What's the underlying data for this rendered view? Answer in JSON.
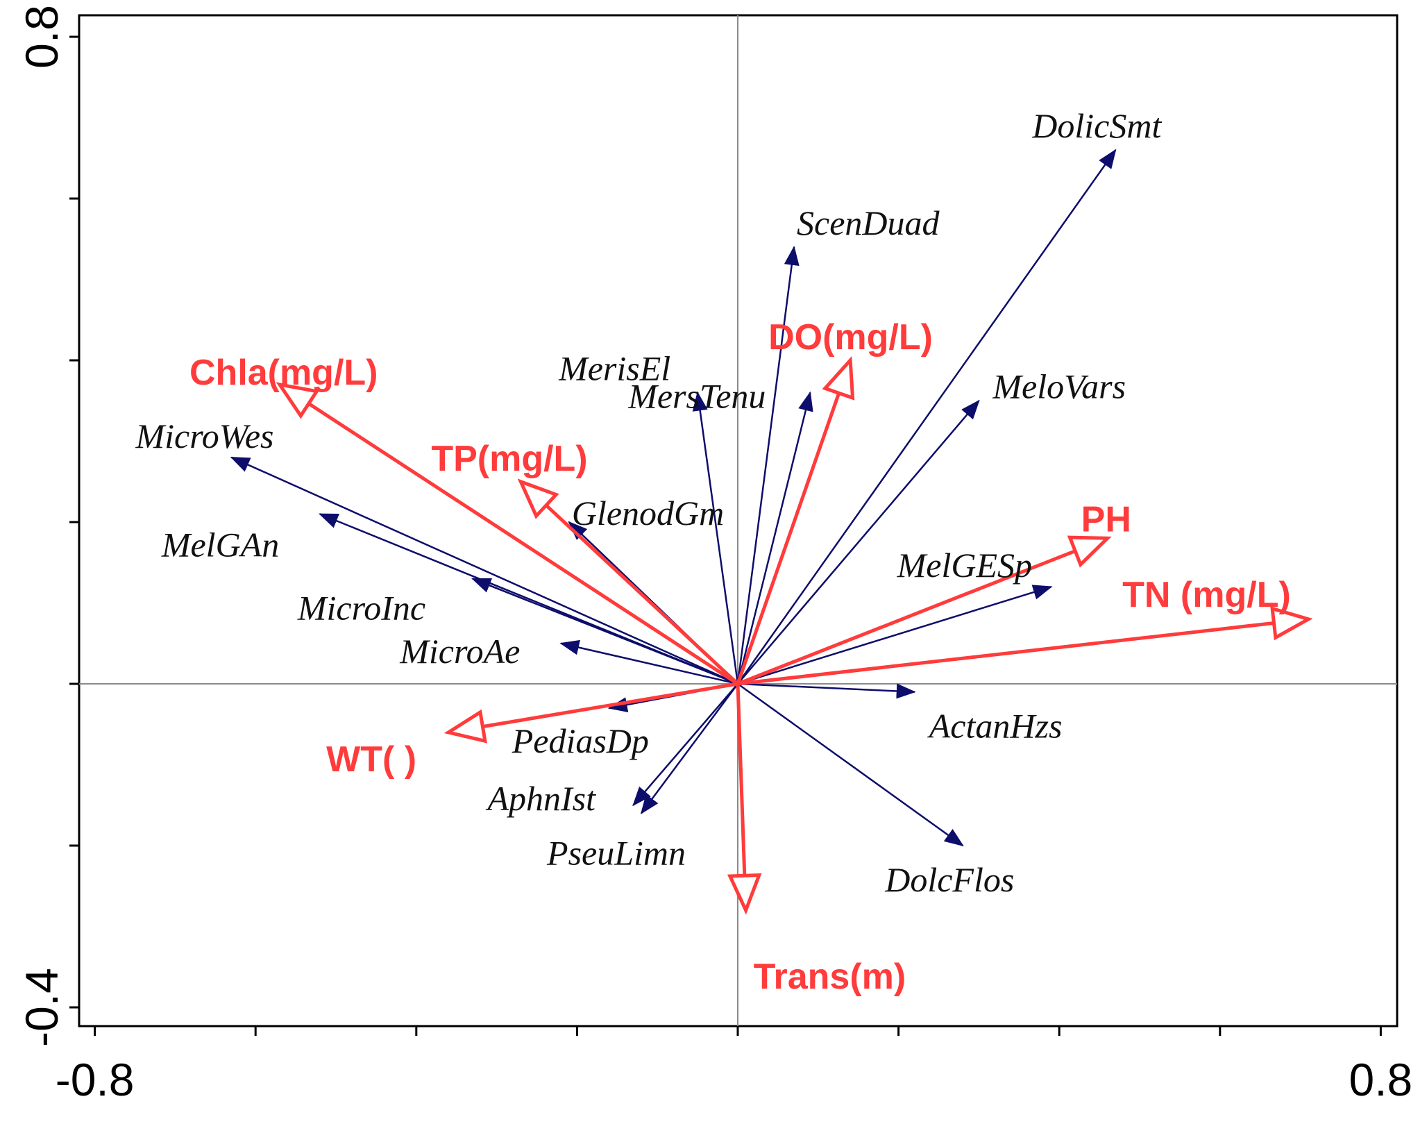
{
  "chart_data": {
    "type": "biplot",
    "title": "",
    "xlim": [
      -0.8,
      0.8
    ],
    "ylim": [
      -0.4,
      0.8
    ],
    "x_ticks": [
      -0.8,
      -0.6,
      -0.4,
      -0.2,
      0,
      0.2,
      0.4,
      0.6,
      0.8
    ],
    "y_ticks": [
      -0.4,
      -0.2,
      0,
      0.2,
      0.4,
      0.6,
      0.8
    ],
    "x_tick_labels": [
      {
        "value": -0.8,
        "label": "-0.8"
      },
      {
        "value": 0.8,
        "label": "0.8"
      }
    ],
    "y_tick_labels": [
      {
        "value": 0.8,
        "label": "0.8"
      },
      {
        "value": -0.4,
        "label": "-0.4"
      }
    ],
    "colors": {
      "species": "#0d0d6b",
      "environment": "#ff3b3b",
      "axis": "#000000",
      "reference": "#8a8a8a"
    },
    "species": [
      {
        "name": "DolicSmt",
        "x": 0.47,
        "y": 0.66
      },
      {
        "name": "ScenDuad",
        "x": 0.07,
        "y": 0.54
      },
      {
        "name": "MerisEl",
        "x": -0.05,
        "y": 0.36
      },
      {
        "name": "MersTenu",
        "x": 0.09,
        "y": 0.36
      },
      {
        "name": "MeloVars",
        "x": 0.3,
        "y": 0.35
      },
      {
        "name": "MicroWes",
        "x": -0.63,
        "y": 0.28
      },
      {
        "name": "GlenodGm",
        "x": -0.21,
        "y": 0.2
      },
      {
        "name": "MelGAn",
        "x": -0.52,
        "y": 0.21
      },
      {
        "name": "MicroInc",
        "x": -0.33,
        "y": 0.13
      },
      {
        "name": "MelGESp",
        "x": 0.39,
        "y": 0.12
      },
      {
        "name": "MicroAe",
        "x": -0.22,
        "y": 0.05
      },
      {
        "name": "ActanHzs",
        "x": 0.22,
        "y": -0.01
      },
      {
        "name": "PediasDp",
        "x": -0.16,
        "y": -0.03
      },
      {
        "name": "AphnIst",
        "x": -0.13,
        "y": -0.15
      },
      {
        "name": "PseuLimn",
        "x": -0.12,
        "y": -0.16
      },
      {
        "name": "DolcFlos",
        "x": 0.28,
        "y": -0.2
      }
    ],
    "environment": [
      {
        "name": "Chla(mg/L)",
        "x": -0.57,
        "y": 0.37
      },
      {
        "name": "DO(mg/L)",
        "x": 0.14,
        "y": 0.4
      },
      {
        "name": "TP(mg/L)",
        "x": -0.27,
        "y": 0.25
      },
      {
        "name": "PH",
        "x": 0.46,
        "y": 0.18
      },
      {
        "name": "TN (mg/L)",
        "x": 0.71,
        "y": 0.08
      },
      {
        "name": "WT( )",
        "x": -0.36,
        "y": -0.06
      },
      {
        "name": "Trans(m)",
        "x": 0.01,
        "y": -0.28
      }
    ]
  }
}
